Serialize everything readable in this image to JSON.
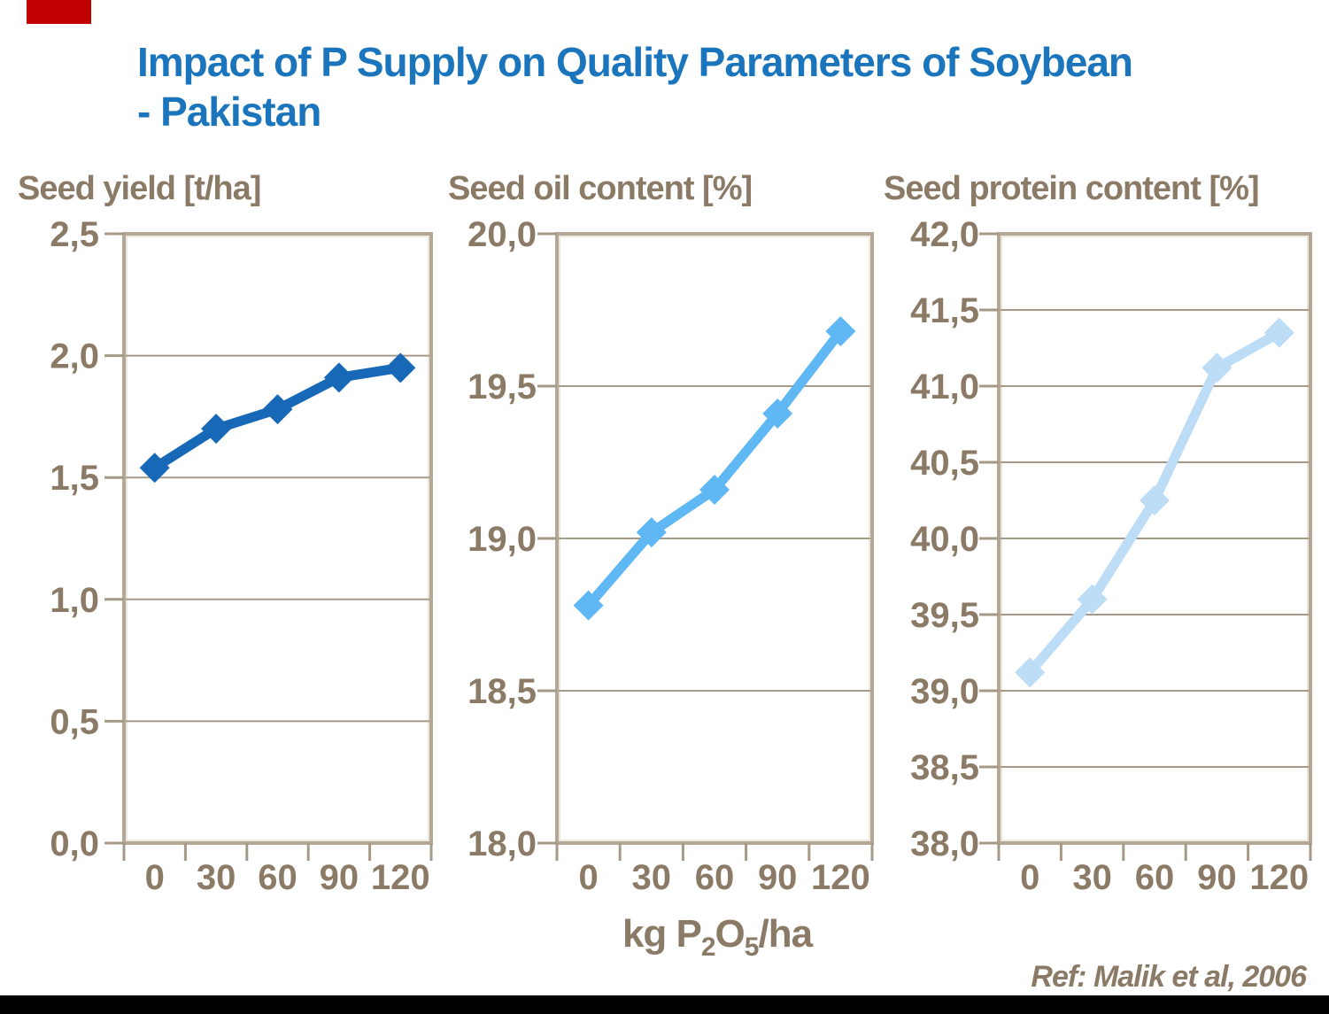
{
  "slide": {
    "title_line1": "Impact of P Supply on Quality Parameters of Soybean",
    "title_line2": "- Pakistan",
    "title_color": "#1B75BC",
    "heading_text_color": "#8A7A66",
    "ref_text": "Ref: Malik et al, 2006",
    "accent_red_color": "#C00000",
    "footer_bar_color": "#000000"
  },
  "x_axis": {
    "tick_labels": [
      "0",
      "30",
      "60",
      "90",
      "120"
    ],
    "label_parts": {
      "prefix": "kg P",
      "sub1": "2",
      "mid": "O",
      "sub2": "5",
      "suffix": "/ha"
    }
  },
  "axis_style": {
    "grid_color": "#A59A88",
    "frame_color": "#B5A795",
    "frame_inner_color": "#E6DFD4",
    "tick_text_color": "#8A7A66",
    "grid": "on",
    "legend": "none"
  },
  "chart_data": [
    {
      "type": "line",
      "title": "Seed yield [t/ha]",
      "xlabel": "kg P2O5/ha",
      "x": [
        0,
        30,
        60,
        90,
        120
      ],
      "values": [
        1.54,
        1.7,
        1.78,
        1.91,
        1.95
      ],
      "ylim": [
        0.0,
        2.5
      ],
      "ytick_values": [
        2.5,
        2.0,
        1.5,
        1.0,
        0.5,
        0.0
      ],
      "ytick_labels": [
        "2,5",
        "2,0",
        "1,5",
        "1,0",
        "0,5",
        "0,0"
      ],
      "line_color": "#1769B8",
      "marker": "diamond"
    },
    {
      "type": "line",
      "title": "Seed oil content [%]",
      "xlabel": "kg P2O5/ha",
      "x": [
        0,
        30,
        60,
        90,
        120
      ],
      "values": [
        18.78,
        19.02,
        19.16,
        19.41,
        19.68
      ],
      "ylim": [
        18.0,
        20.0
      ],
      "ytick_values": [
        20.0,
        19.5,
        19.0,
        18.5,
        18.0
      ],
      "ytick_labels": [
        "20,0",
        "19,5",
        "19,0",
        "18,5",
        "18,0"
      ],
      "line_color": "#5FB7F3",
      "marker": "diamond"
    },
    {
      "type": "line",
      "title": "Seed protein content [%]",
      "xlabel": "kg P2O5/ha",
      "x": [
        0,
        30,
        60,
        90,
        120
      ],
      "values": [
        39.12,
        39.6,
        40.25,
        41.12,
        41.35
      ],
      "ylim": [
        38.0,
        42.0
      ],
      "ytick_values": [
        42.0,
        41.5,
        41.0,
        40.5,
        40.0,
        39.5,
        39.0,
        38.5,
        38.0
      ],
      "ytick_labels": [
        "42,0",
        "41,5",
        "41,0",
        "40,5",
        "40,0",
        "39,5",
        "39,0",
        "38,5",
        "38,0"
      ],
      "line_color": "#BDDDF7",
      "marker": "diamond"
    }
  ]
}
